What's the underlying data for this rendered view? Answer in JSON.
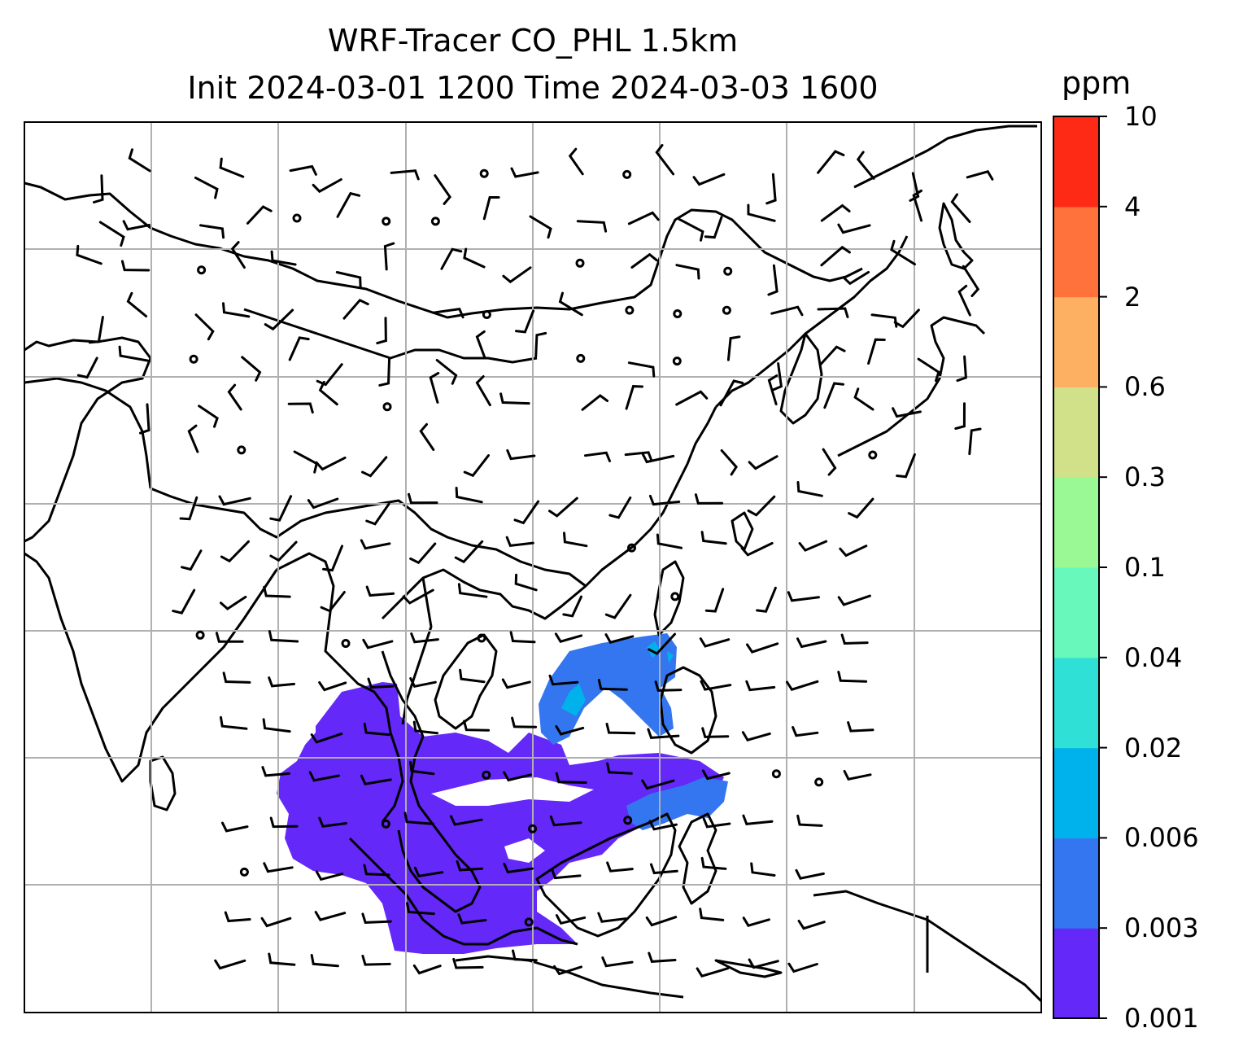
{
  "title": {
    "line1": "WRF-Tracer CO_PHL 1.5km",
    "line2": "Init 2024-03-01 1200 Time 2024-03-03 1600"
  },
  "colorbar": {
    "unit": "ppm",
    "tick_labels": [
      "0.001",
      "0.003",
      "0.006",
      "0.02",
      "0.04",
      "0.1",
      "0.3",
      "0.6",
      "2",
      "4",
      "10"
    ],
    "colors": [
      "#6428f8",
      "#3376f0",
      "#00b2ec",
      "#2ee0d6",
      "#68f8bc",
      "#9af895",
      "#d0e18a",
      "#fdb062",
      "#ff723c",
      "#ff2a16"
    ]
  },
  "map": {
    "coastline_color": "#000000",
    "gridline_color": "#b0b0b0",
    "wind_barb_color": "#000000"
  }
}
